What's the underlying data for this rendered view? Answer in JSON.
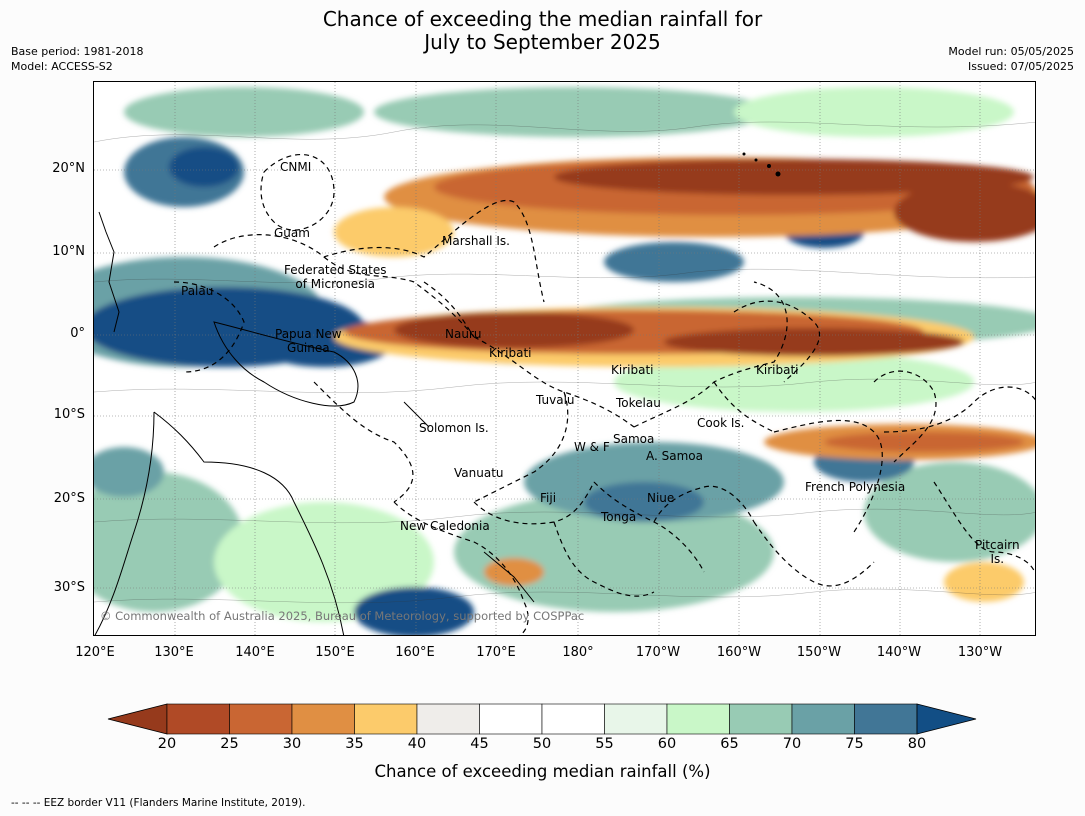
{
  "title_line1": "Chance of exceeding the median rainfall for",
  "title_line2": "July to September 2025",
  "meta_left": [
    "Base period: 1981-2018",
    "Model: ACCESS-S2"
  ],
  "meta_right": [
    "Model run: 05/05/2025",
    "Issued: 07/05/2025"
  ],
  "lat_ticks": [
    "20°N",
    "10°N",
    "0°",
    "10°S",
    "20°S",
    "30°S"
  ],
  "lon_ticks": [
    "120°E",
    "130°E",
    "140°E",
    "150°E",
    "160°E",
    "170°E",
    "180°",
    "170°W",
    "160°W",
    "150°W",
    "140°W",
    "130°W"
  ],
  "places": {
    "cnmi": "CNMI",
    "guam": "Guam",
    "marshall": "Marshall Is.",
    "fsm1": "Federated States",
    "fsm2": "of Micronesia",
    "palau": "Palau",
    "png1": "Papua New",
    "png2": "Guinea",
    "nauru": "Nauru",
    "kiribati_w": "Kiribati",
    "kiribati_c": "Kiribati",
    "kiribati_e": "Kiribati",
    "tuvalu": "Tuvalu",
    "tokelau": "Tokelau",
    "cook": "Cook Is.",
    "solomon": "Solomon Is.",
    "samoa": "Samoa",
    "wf": "W & F",
    "asamoa": "A. Samoa",
    "vanuatu": "Vanuatu",
    "fiji": "Fiji",
    "niue": "Niue",
    "french_polynesia": "French Polynesia",
    "tonga": "Tonga",
    "new_caledonia": "New Caledonia",
    "pitcairn1": "Pitcairn",
    "pitcairn2": "Is."
  },
  "copyright": "© Commonwealth of Australia 2025, Bureau of Meteorology, supported by COSPPac",
  "colorbar": {
    "labels": [
      "20",
      "25",
      "30",
      "35",
      "40",
      "45",
      "50",
      "55",
      "60",
      "65",
      "70",
      "75",
      "80"
    ],
    "colors": [
      "#963a1c",
      "#b04a26",
      "#c96633",
      "#e08f43",
      "#fccb6b",
      "#efedea",
      "#ffffff",
      "#ffffff",
      "#e8f6e9",
      "#c9f7c8",
      "#98cbb4",
      "#6aa1a6",
      "#417696",
      "#124e85"
    ],
    "title": "Chance of exceeding median rainfall (%)"
  },
  "footnote": "--  --  -- EEZ border V11 (Flanders Marine Institute, 2019)."
}
